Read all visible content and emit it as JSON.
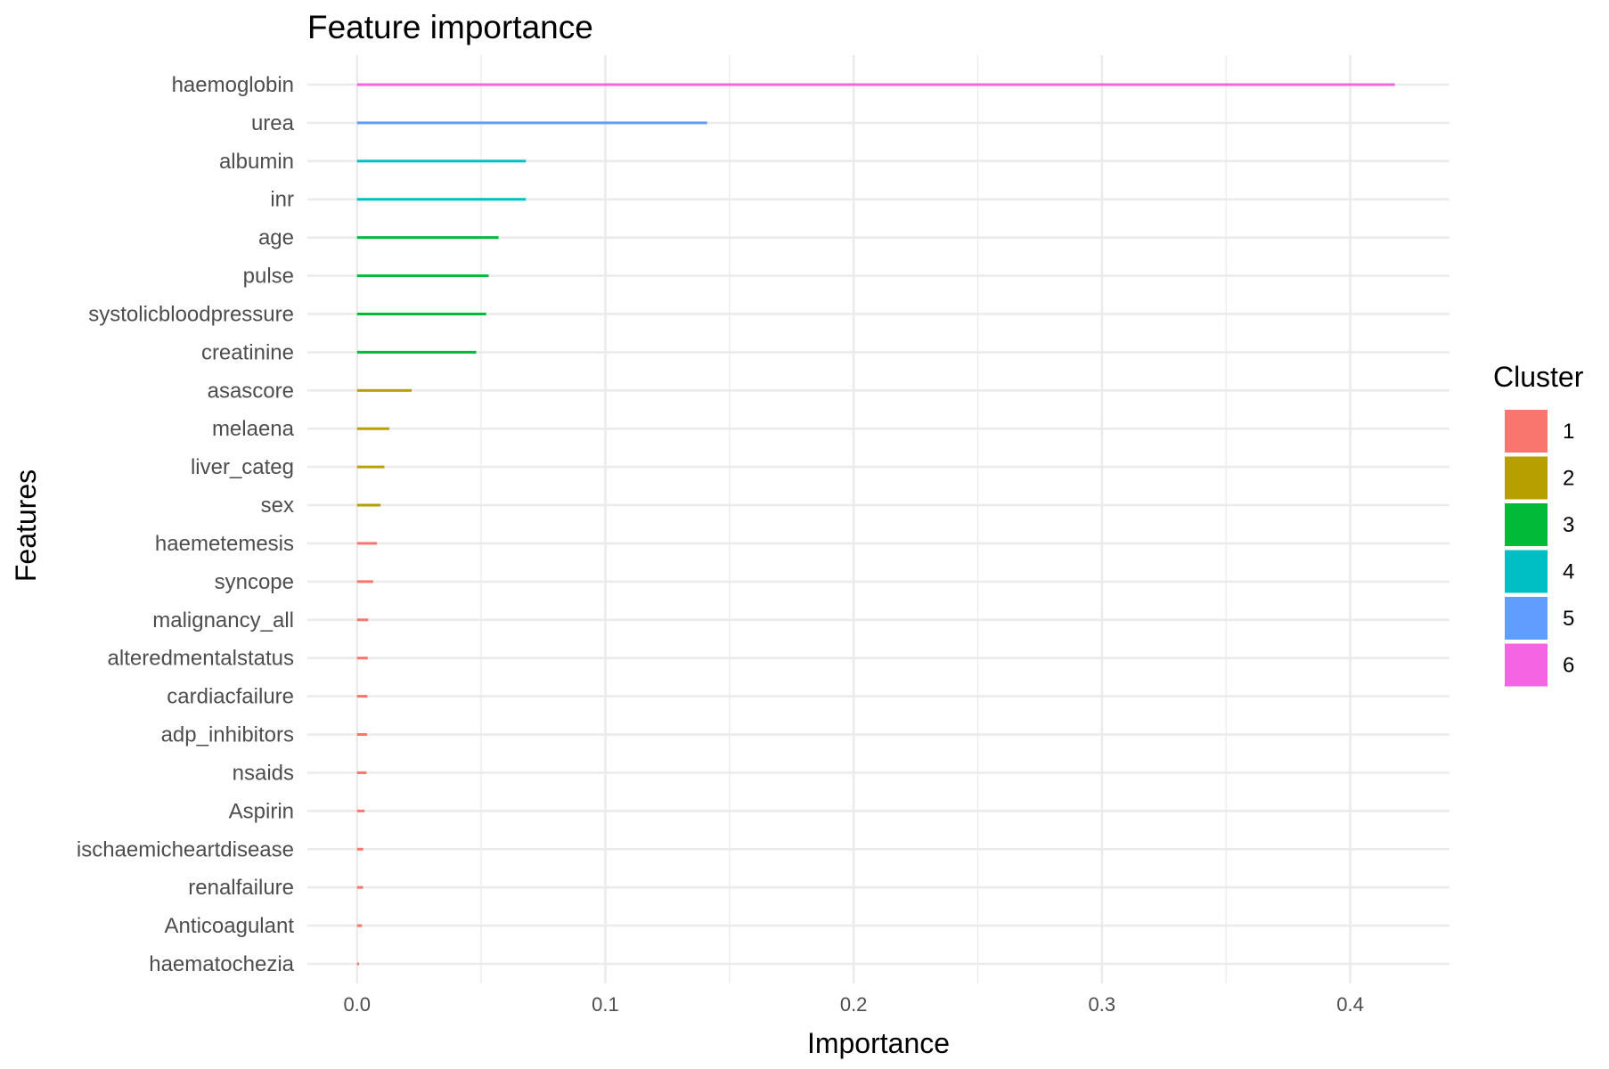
{
  "chart_data": {
    "type": "bar",
    "orientation": "horizontal",
    "title": "Feature importance",
    "xlabel": "Importance",
    "ylabel": "Features",
    "xlim": [
      -0.02,
      0.44
    ],
    "x_ticks": [
      0.0,
      0.1,
      0.2,
      0.3,
      0.4
    ],
    "x_tick_labels": [
      "0.0",
      "0.1",
      "0.2",
      "0.3",
      "0.4"
    ],
    "grid": true,
    "legend": {
      "title": "Cluster",
      "placement": "right",
      "entries": [
        {
          "label": "1",
          "color": "#F8766D"
        },
        {
          "label": "2",
          "color": "#B79F00"
        },
        {
          "label": "3",
          "color": "#00BA38"
        },
        {
          "label": "4",
          "color": "#00BFC4"
        },
        {
          "label": "5",
          "color": "#619CFF"
        },
        {
          "label": "6",
          "color": "#F564E3"
        }
      ]
    },
    "bars": [
      {
        "feature": "haemoglobin",
        "value": 0.418,
        "cluster": "6"
      },
      {
        "feature": "urea",
        "value": 0.141,
        "cluster": "5"
      },
      {
        "feature": "albumin",
        "value": 0.068,
        "cluster": "4"
      },
      {
        "feature": "inr",
        "value": 0.068,
        "cluster": "4"
      },
      {
        "feature": "age",
        "value": 0.057,
        "cluster": "3"
      },
      {
        "feature": "pulse",
        "value": 0.053,
        "cluster": "3"
      },
      {
        "feature": "systolicbloodpressure",
        "value": 0.052,
        "cluster": "3"
      },
      {
        "feature": "creatinine",
        "value": 0.048,
        "cluster": "3"
      },
      {
        "feature": "asascore",
        "value": 0.022,
        "cluster": "2"
      },
      {
        "feature": "melaena",
        "value": 0.013,
        "cluster": "2"
      },
      {
        "feature": "liver_categ",
        "value": 0.011,
        "cluster": "2"
      },
      {
        "feature": "sex",
        "value": 0.0095,
        "cluster": "2"
      },
      {
        "feature": "haemetemesis",
        "value": 0.008,
        "cluster": "1"
      },
      {
        "feature": "syncope",
        "value": 0.0065,
        "cluster": "1"
      },
      {
        "feature": "malignancy_all",
        "value": 0.0045,
        "cluster": "1"
      },
      {
        "feature": "alteredmentalstatus",
        "value": 0.0043,
        "cluster": "1"
      },
      {
        "feature": "cardiacfailure",
        "value": 0.0042,
        "cluster": "1"
      },
      {
        "feature": "adp_inhibitors",
        "value": 0.0041,
        "cluster": "1"
      },
      {
        "feature": "nsaids",
        "value": 0.0038,
        "cluster": "1"
      },
      {
        "feature": "Aspirin",
        "value": 0.003,
        "cluster": "1"
      },
      {
        "feature": "ischaemicheartdisease",
        "value": 0.0025,
        "cluster": "1"
      },
      {
        "feature": "renalfailure",
        "value": 0.0024,
        "cluster": "1"
      },
      {
        "feature": "Anticoagulant",
        "value": 0.002,
        "cluster": "1"
      },
      {
        "feature": "haematochezia",
        "value": 0.0008,
        "cluster": "1"
      }
    ]
  }
}
